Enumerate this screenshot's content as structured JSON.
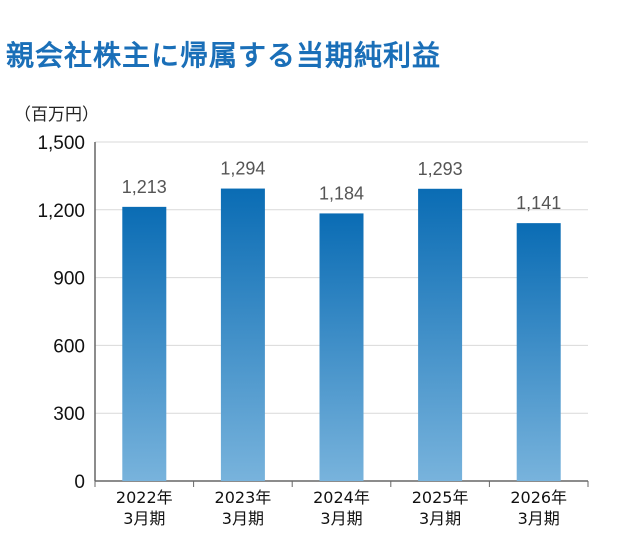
{
  "chart_data": {
    "type": "bar",
    "title": "親会社株主に帰属する当期純利益",
    "unit": "（百万円）",
    "categories": [
      [
        "2022年",
        "3月期"
      ],
      [
        "2023年",
        "3月期"
      ],
      [
        "2024年",
        "3月期"
      ],
      [
        "2025年",
        "3月期"
      ],
      [
        "2026年",
        "3月期"
      ]
    ],
    "values": [
      1213,
      1294,
      1184,
      1293,
      1141
    ],
    "value_labels": [
      "1,213",
      "1,294",
      "1,184",
      "1,293",
      "1,141"
    ],
    "yticks": [
      0,
      300,
      600,
      900,
      1200,
      1500
    ],
    "ytick_labels": [
      "0",
      "300",
      "600",
      "900",
      "1,200",
      "1,500"
    ],
    "ylim": [
      0,
      1500
    ],
    "grid": true,
    "colors": {
      "title": "#1a6fb8",
      "bar_top": "#0a6cb4",
      "bar_bottom": "#78b3dc",
      "grid": "#d9d9d9",
      "axis": "#666666"
    }
  }
}
